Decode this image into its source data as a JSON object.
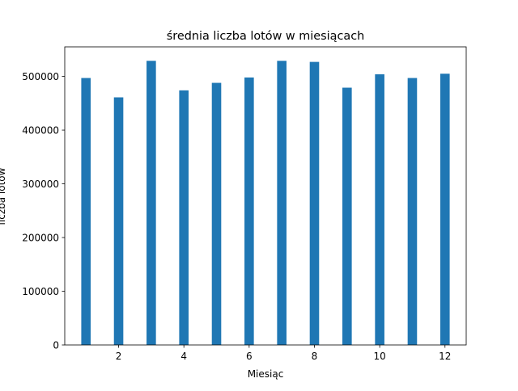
{
  "chart_data": {
    "type": "bar",
    "title": "średnia liczba lotów w miesiącach",
    "xlabel": "Miesiąc",
    "ylabel": "liczba lotów",
    "x": [
      1,
      2,
      3,
      4,
      5,
      6,
      7,
      8,
      9,
      10,
      11,
      12
    ],
    "values": [
      497000,
      461000,
      529000,
      474000,
      488000,
      498000,
      529000,
      527000,
      479000,
      504000,
      497000,
      505000
    ],
    "xlim": [
      0.35,
      12.65
    ],
    "ylim": [
      0,
      555000
    ],
    "xticks": [
      2,
      4,
      6,
      8,
      10,
      12
    ],
    "yticks": [
      0,
      100000,
      200000,
      300000,
      400000,
      500000
    ],
    "bar_color": "#1f77b4",
    "grid": false,
    "legend": "none"
  }
}
